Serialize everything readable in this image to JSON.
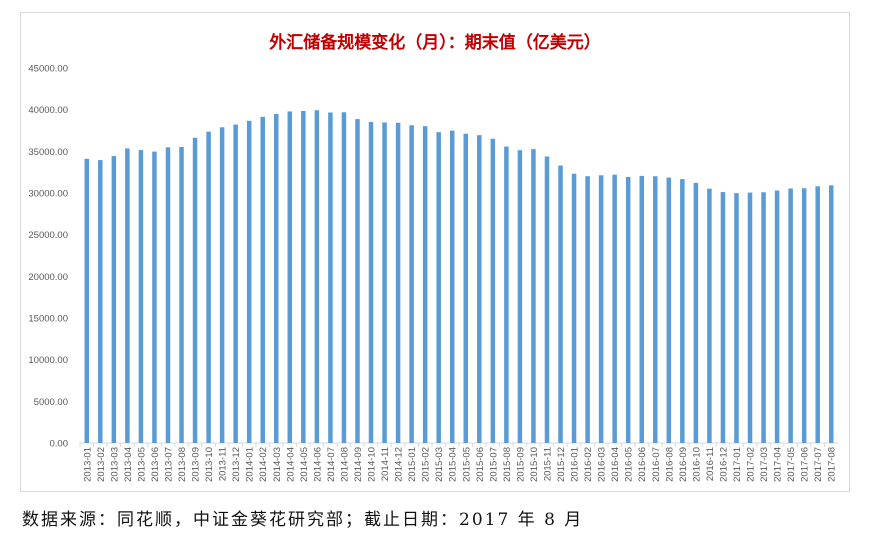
{
  "chart_data": {
    "type": "bar",
    "title": "外汇储备规模变化（月）：期末值（亿美元）",
    "xlabel": "",
    "ylabel": "",
    "ylim": [
      0,
      45000
    ],
    "yticks": [
      "0.00",
      "5000.00",
      "10000.00",
      "15000.00",
      "20000.00",
      "25000.00",
      "30000.00",
      "35000.00",
      "40000.00",
      "45000.00"
    ],
    "grid": false,
    "bar_color": "#5b9bd5",
    "categories": [
      "2013-01",
      "2013-02",
      "2013-03",
      "2013-04",
      "2013-05",
      "2013-06",
      "2013-07",
      "2013-08",
      "2013-09",
      "2013-10",
      "2013-11",
      "2013-12",
      "2014-01",
      "2014-02",
      "2014-03",
      "2014-04",
      "2014-05",
      "2014-06",
      "2014-07",
      "2014-08",
      "2014-09",
      "2014-10",
      "2014-11",
      "2014-12",
      "2015-01",
      "2015-02",
      "2015-03",
      "2015-04",
      "2015-05",
      "2015-06",
      "2015-07",
      "2015-08",
      "2015-09",
      "2015-10",
      "2015-11",
      "2015-12",
      "2016-01",
      "2016-02",
      "2016-03",
      "2016-04",
      "2016-05",
      "2016-06",
      "2016-07",
      "2016-08",
      "2016-09",
      "2016-10",
      "2016-11",
      "2016-12",
      "2017-01",
      "2017-02",
      "2017-03",
      "2017-04",
      "2017-05",
      "2017-06",
      "2017-07",
      "2017-08"
    ],
    "values": [
      34100,
      33950,
      34430,
      35350,
      35150,
      34970,
      35480,
      35530,
      36630,
      37360,
      37890,
      38210,
      38660,
      39140,
      39480,
      39790,
      39840,
      39930,
      39660,
      39690,
      38870,
      38530,
      38470,
      38430,
      38130,
      38020,
      37300,
      37480,
      37110,
      36940,
      36510,
      35570,
      35140,
      35260,
      34380,
      33300,
      32310,
      32020,
      32130,
      32200,
      31920,
      32050,
      32010,
      31850,
      31660,
      31210,
      30520,
      30110,
      29980,
      30050,
      30090,
      30300,
      30540,
      30570,
      30810,
      30920
    ]
  },
  "footer": "数据来源：同花顺，中证金葵花研究部；截止日期：2017 年 8 月"
}
